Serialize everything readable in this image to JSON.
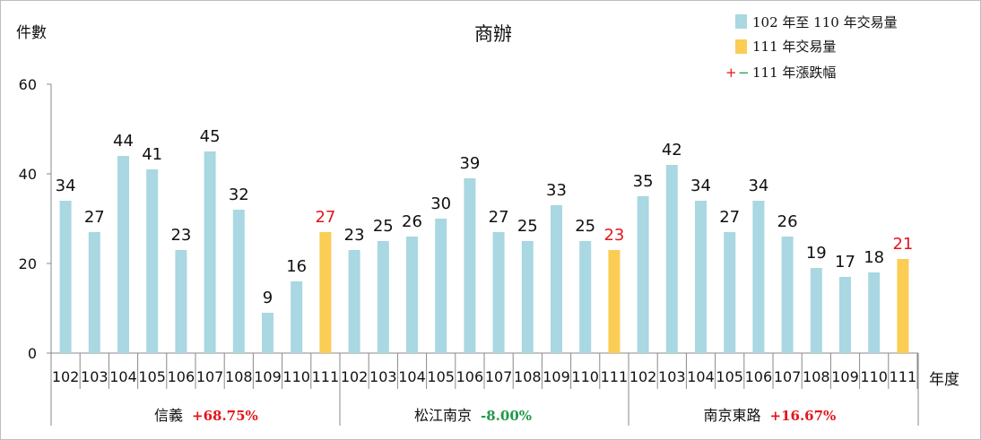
{
  "chart_data": {
    "type": "bar",
    "title": "商辦",
    "ylabel": "件數",
    "xlabel": "年度",
    "ylim": [
      0,
      60
    ],
    "yticks": [
      0,
      20,
      40,
      60
    ],
    "grid": false,
    "legend_position": "top-right",
    "legend": {
      "historical": "102 年至 110 年交易量",
      "current": "111 年交易量",
      "change_prefix_plus": "+",
      "change_prefix_minus": "−",
      "change": "111 年漲跌幅"
    },
    "colors": {
      "historical": "#a9d7e2",
      "current": "#fbcd54",
      "positive": "#e5151b",
      "negative": "#1f9a48",
      "axis": "#888888",
      "text": "#111111"
    },
    "groups": [
      {
        "name": "信義",
        "change": "+68.75%",
        "change_sign": "positive",
        "years": [
          "102",
          "103",
          "104",
          "105",
          "106",
          "107",
          "108",
          "109",
          "110",
          "111"
        ],
        "values": [
          34,
          27,
          44,
          41,
          23,
          45,
          32,
          9,
          16,
          27
        ]
      },
      {
        "name": "松江南京",
        "change": "-8.00%",
        "change_sign": "negative",
        "years": [
          "102",
          "103",
          "104",
          "105",
          "106",
          "107",
          "108",
          "109",
          "110",
          "111"
        ],
        "values": [
          23,
          25,
          26,
          30,
          39,
          27,
          25,
          33,
          25,
          23
        ]
      },
      {
        "name": "南京東路",
        "change": "+16.67%",
        "change_sign": "positive",
        "years": [
          "102",
          "103",
          "104",
          "105",
          "106",
          "107",
          "108",
          "109",
          "110",
          "111"
        ],
        "values": [
          35,
          42,
          34,
          27,
          34,
          26,
          19,
          17,
          18,
          21
        ]
      }
    ]
  }
}
